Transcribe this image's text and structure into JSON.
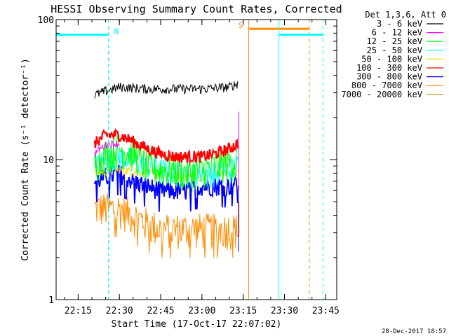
{
  "chart_data": {
    "type": "line",
    "title": "HESSI Observing Summary Count Rates, Corrected",
    "xlabel": "Start Time (17-Oct-17 22:07:02)",
    "ylabel": "Corrected Count Rate (s⁻¹ detector⁻¹)",
    "y_scale": "log",
    "ylim": [
      1,
      100
    ],
    "xlim_minutes_after_22_00": [
      7,
      109
    ],
    "x_ticks": [
      {
        "t": 15,
        "label": "22:15"
      },
      {
        "t": 30,
        "label": "22:30"
      },
      {
        "t": 45,
        "label": "22:45"
      },
      {
        "t": 60,
        "label": "23:00"
      },
      {
        "t": 75,
        "label": "23:15"
      },
      {
        "t": 90,
        "label": "23:30"
      },
      {
        "t": 105,
        "label": "23:45"
      }
    ],
    "y_ticks": [
      {
        "v": 1,
        "label": "1"
      },
      {
        "v": 10,
        "label": "10"
      },
      {
        "v": 100,
        "label": "100"
      }
    ],
    "legend_header": "Det 1,3,6, Att 0",
    "legend_placement": "right, outside plot",
    "series": [
      {
        "name": "3 - 6 keV",
        "color": "#000000",
        "t": [
          21,
          30,
          40,
          50,
          60,
          70,
          73
        ],
        "values": [
          29,
          33,
          32,
          32,
          32,
          33,
          35
        ]
      },
      {
        "name": "6 - 12 keV",
        "color": "#ff00ff",
        "t": [
          21,
          23,
          26,
          30
        ],
        "values": [
          11,
          12,
          13,
          13
        ]
      },
      {
        "name": "12 - 25 keV",
        "color": "#00ff00",
        "t": [
          21,
          25,
          30,
          35,
          40,
          45,
          50,
          55,
          60,
          65,
          70,
          73
        ],
        "values": [
          9,
          11,
          12,
          11,
          9,
          8.5,
          8.5,
          8,
          8.5,
          9,
          9.5,
          10
        ]
      },
      {
        "name": "25 - 50 keV",
        "color": "#00ffff",
        "t": [
          21,
          25,
          30,
          35,
          40,
          45,
          50,
          55,
          60,
          65,
          70,
          73
        ],
        "values": [
          9,
          10,
          10.5,
          10,
          9,
          8.5,
          8,
          8,
          8,
          8,
          8.5,
          9
        ]
      },
      {
        "name": "50 - 100 keV",
        "color": "#ffd700",
        "t": [
          21,
          30,
          40,
          50,
          60,
          70,
          73
        ],
        "values": [
          8,
          8.5,
          8,
          7.5,
          7.5,
          8,
          8
        ]
      },
      {
        "name": "100 - 300 keV",
        "color": "#ff0000",
        "t": [
          21,
          25,
          30,
          35,
          40,
          45,
          50,
          55,
          60,
          65,
          70,
          73
        ],
        "values": [
          13,
          15,
          15,
          13.5,
          12,
          11,
          10.5,
          10.5,
          10.5,
          11,
          12,
          13
        ]
      },
      {
        "name": "300 - 800 keV",
        "color": "#0000ff",
        "t": [
          21,
          25,
          30,
          35,
          40,
          45,
          50,
          55,
          60,
          65,
          70,
          73
        ],
        "values": [
          7,
          7.5,
          8,
          7,
          6.5,
          6,
          6,
          6,
          6.5,
          6.5,
          6.5,
          7
        ]
      },
      {
        "name": "800 - 7000 keV",
        "color": "#ff8c00",
        "t": [
          21,
          25,
          30,
          35,
          40,
          45,
          50,
          55,
          60,
          65,
          70,
          73
        ],
        "values": [
          4.5,
          4.5,
          4.5,
          4,
          3.5,
          3.2,
          3.2,
          3.2,
          3.2,
          3.2,
          3.2,
          3.2
        ]
      },
      {
        "name": "7000 - 20000 keV",
        "color": "#b8860b",
        "t": [],
        "values": []
      }
    ],
    "annotations": [
      {
        "label": "N",
        "color": "#00ffff",
        "bar_t": [
          7,
          26
        ],
        "y": 78,
        "dashed_line_t": 26
      },
      {
        "label": "S",
        "color": "#ff8c00",
        "bar_t": [
          77,
          99
        ],
        "y": 86,
        "solid_line_t": 77,
        "dashed_line_t": 99
      },
      {
        "label": "",
        "color": "#00ffff",
        "bar_t": [
          88,
          104
        ],
        "y": 78,
        "solid_lines_t": [
          7,
          88
        ],
        "dashed_line_t": 104
      }
    ]
  },
  "timestamp": "28-Dec-2017 18:57"
}
